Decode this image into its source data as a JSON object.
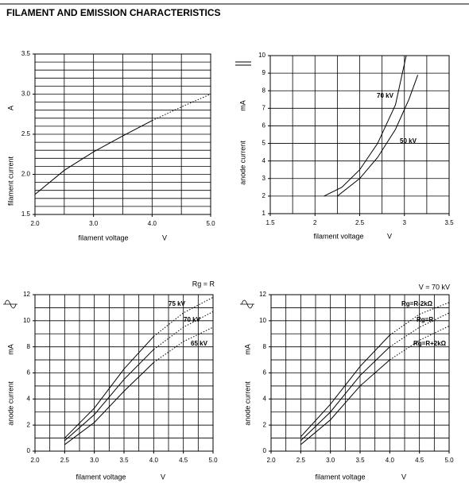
{
  "title": "FILAMENT AND EMISSION CHARACTERISTICS",
  "chart_data": [
    {
      "type": "line",
      "xlabel": "filament voltage",
      "xunit": "V",
      "ylabel": "filament current",
      "yunit": "A",
      "xlim": [
        2.0,
        5.0
      ],
      "ylim": [
        1.5,
        3.5
      ],
      "xticks": [
        {
          "value": 2.0,
          "label": "2.0"
        },
        {
          "value": 3.0,
          "label": "3.0"
        },
        {
          "value": 4.0,
          "label": "4.0"
        },
        {
          "value": 5.0,
          "label": "5.0"
        }
      ],
      "yticks": [
        1.5,
        {
          "value": 2.0,
          "label": "2.0"
        },
        2.5,
        {
          "value": 3.0,
          "label": "3.0"
        },
        3.5
      ],
      "xgrid": [
        2.0,
        2.5,
        3.0,
        3.5,
        4.0,
        4.5,
        5.0
      ],
      "ygrid": [
        1.5,
        1.6,
        1.7,
        1.8,
        1.9,
        2.0,
        2.1,
        2.2,
        2.3,
        2.4,
        2.5,
        2.6,
        2.7,
        2.8,
        2.9,
        3.0,
        3.1,
        3.2,
        3.3,
        3.4,
        3.5
      ],
      "dotted_from": 4.0,
      "series": [
        {
          "x": [
            2.0,
            2.5,
            3.0,
            3.5,
            4.0,
            4.5,
            5.0
          ],
          "values": [
            1.75,
            2.05,
            2.28,
            2.48,
            2.67,
            2.84,
            3.0
          ],
          "color": "#000000"
        }
      ]
    },
    {
      "type": "line",
      "xlabel": "filament voltage",
      "xunit": "V",
      "ylabel": "anode current",
      "yunit": "mA",
      "xlim": [
        1.5,
        3.5
      ],
      "ylim": [
        1,
        10
      ],
      "xticks": [
        1.5,
        2,
        2.5,
        3,
        3.5
      ],
      "yticks": [
        1,
        2,
        3,
        4,
        5,
        6,
        7,
        8,
        9,
        10
      ],
      "xgrid": [
        1.5,
        1.75,
        2,
        2.25,
        2.5,
        2.75,
        3,
        3.25,
        3.5
      ],
      "ygrid": [
        1,
        2,
        3,
        4,
        5,
        6,
        7,
        8,
        9,
        10
      ],
      "annotations": [
        "70 kV",
        "50 kV"
      ],
      "series": [
        {
          "x": [
            2.1,
            2.3,
            2.5,
            2.7,
            2.9,
            3.02
          ],
          "values": [
            2,
            2.5,
            3.5,
            5,
            7.2,
            10
          ],
          "color": "#000000"
        },
        {
          "x": [
            2.25,
            2.5,
            2.7,
            2.9,
            3.05,
            3.15
          ],
          "values": [
            2,
            3,
            4.2,
            5.8,
            7.5,
            8.9
          ],
          "color": "#000000"
        }
      ]
    },
    {
      "type": "line",
      "subtitle": "Rg = R",
      "xlabel": "filament voltage",
      "xunit": "V",
      "ylabel": "anode current",
      "yunit": "mA",
      "xlim": [
        2.0,
        5.0
      ],
      "ylim": [
        0,
        12
      ],
      "xticks": [
        {
          "value": 2.0,
          "label": "2.0"
        },
        2.5,
        {
          "value": 3.0,
          "label": "3.0"
        },
        3.5,
        {
          "value": 4.0,
          "label": "4.0"
        },
        4.5,
        {
          "value": 5.0,
          "label": "5.0"
        }
      ],
      "yticks": [
        0,
        2,
        4,
        6,
        8,
        10,
        12
      ],
      "xgrid": [
        2.0,
        2.25,
        2.5,
        2.75,
        3.0,
        3.25,
        3.5,
        3.75,
        4.0,
        4.25,
        4.5,
        4.75,
        5.0
      ],
      "ygrid": [
        0,
        1,
        2,
        3,
        4,
        5,
        6,
        7,
        8,
        9,
        10,
        11,
        12
      ],
      "dotted_from": 4.0,
      "annotations": [
        "75 kV",
        "70 kV",
        "65 kV"
      ],
      "series": [
        {
          "x": [
            2.5,
            3.0,
            3.5,
            4.0,
            4.5,
            5.0
          ],
          "values": [
            1.0,
            3.3,
            6.3,
            8.8,
            10.6,
            11.8
          ],
          "color": "#000000"
        },
        {
          "x": [
            2.5,
            3.0,
            3.5,
            4.0,
            4.5,
            5.0
          ],
          "values": [
            0.8,
            2.8,
            5.5,
            7.8,
            9.5,
            10.7
          ],
          "color": "#000000"
        },
        {
          "x": [
            2.5,
            3.0,
            3.5,
            4.0,
            4.5,
            5.0
          ],
          "values": [
            0.5,
            2.2,
            4.6,
            6.8,
            8.4,
            9.5
          ],
          "color": "#000000"
        }
      ]
    },
    {
      "type": "line",
      "subtitle": "V = 70 kV",
      "xlabel": "filament voltage",
      "xunit": "V",
      "ylabel": "anode current",
      "yunit": "mA",
      "xlim": [
        2.0,
        5.0
      ],
      "ylim": [
        0,
        12
      ],
      "xticks": [
        {
          "value": 2.0,
          "label": "2.0"
        },
        2.5,
        {
          "value": 3.0,
          "label": "3.0"
        },
        3.5,
        {
          "value": 4.0,
          "label": "4.0"
        },
        4.5,
        {
          "value": 5.0,
          "label": "5.0"
        }
      ],
      "yticks": [
        0,
        2,
        4,
        6,
        8,
        10,
        12
      ],
      "xgrid": [
        2.0,
        2.25,
        2.5,
        2.75,
        3.0,
        3.25,
        3.5,
        3.75,
        4.0,
        4.25,
        4.5,
        4.75,
        5.0
      ],
      "ygrid": [
        0,
        1,
        2,
        3,
        4,
        5,
        6,
        7,
        8,
        9,
        10,
        11,
        12
      ],
      "dotted_from": 4.0,
      "annotations": [
        "Rg=R-2kΩ",
        "Rg=R",
        "Rg=R+2kΩ"
      ],
      "series": [
        {
          "x": [
            2.5,
            3.0,
            3.5,
            4.0,
            4.5,
            5.0
          ],
          "values": [
            1.1,
            3.6,
            6.5,
            8.9,
            10.5,
            11.4
          ],
          "color": "#000000"
        },
        {
          "x": [
            2.5,
            3.0,
            3.5,
            4.0,
            4.5,
            5.0
          ],
          "values": [
            0.8,
            3.0,
            5.8,
            8.0,
            9.5,
            10.6
          ],
          "color": "#000000"
        },
        {
          "x": [
            2.5,
            3.0,
            3.5,
            4.0,
            4.5,
            5.0
          ],
          "values": [
            0.5,
            2.4,
            5.0,
            7.0,
            8.5,
            9.6
          ],
          "color": "#000000"
        }
      ]
    }
  ]
}
